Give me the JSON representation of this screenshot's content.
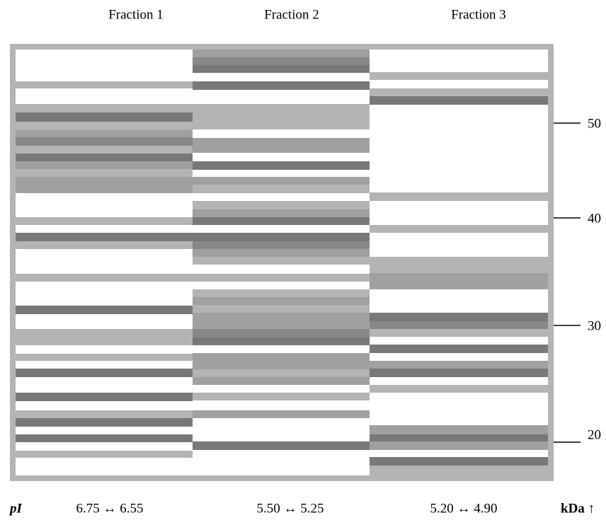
{
  "header": {
    "fractions": [
      "Fraction 1",
      "Fraction 2",
      "Fraction 3"
    ]
  },
  "mass_scale": {
    "labels": [
      "50",
      "40",
      "30",
      "20"
    ]
  },
  "footer": {
    "pi_label": "pI",
    "ranges": [
      "6.75 ↔ 6.55",
      "5.50 ↔ 5.25",
      "5.20 ↔ 4.90"
    ],
    "unit_label": "kDa ↑"
  }
}
